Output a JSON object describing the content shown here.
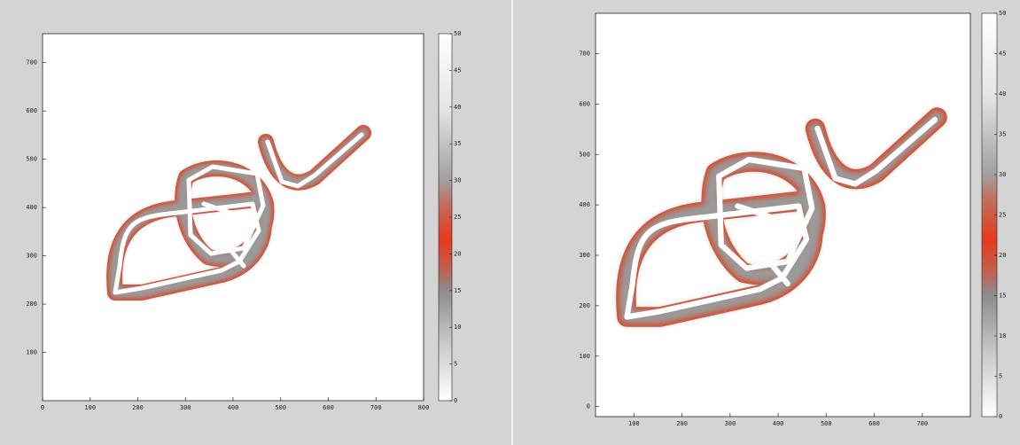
{
  "chart_data": [
    {
      "type": "heatmap",
      "xlim": [
        0,
        800
      ],
      "ylim": [
        0,
        760
      ],
      "xticks": [
        0,
        100,
        200,
        300,
        400,
        500,
        600,
        700,
        800
      ],
      "yticks": [
        100,
        200,
        300,
        400,
        500,
        600,
        700
      ],
      "clim": [
        0,
        50
      ],
      "cticks": [
        0,
        5,
        10,
        15,
        20,
        25,
        30,
        35,
        40,
        45,
        50
      ]
    },
    {
      "type": "heatmap",
      "xlim": [
        20,
        800
      ],
      "ylim": [
        -20,
        780
      ],
      "xticks": [
        100,
        200,
        300,
        400,
        500,
        600,
        700
      ],
      "yticks": [
        0,
        100,
        200,
        300,
        400,
        500,
        600,
        700
      ],
      "clim": [
        0,
        50
      ],
      "cticks": [
        0,
        5,
        10,
        15,
        20,
        25,
        30,
        35,
        40,
        45,
        50
      ]
    }
  ]
}
